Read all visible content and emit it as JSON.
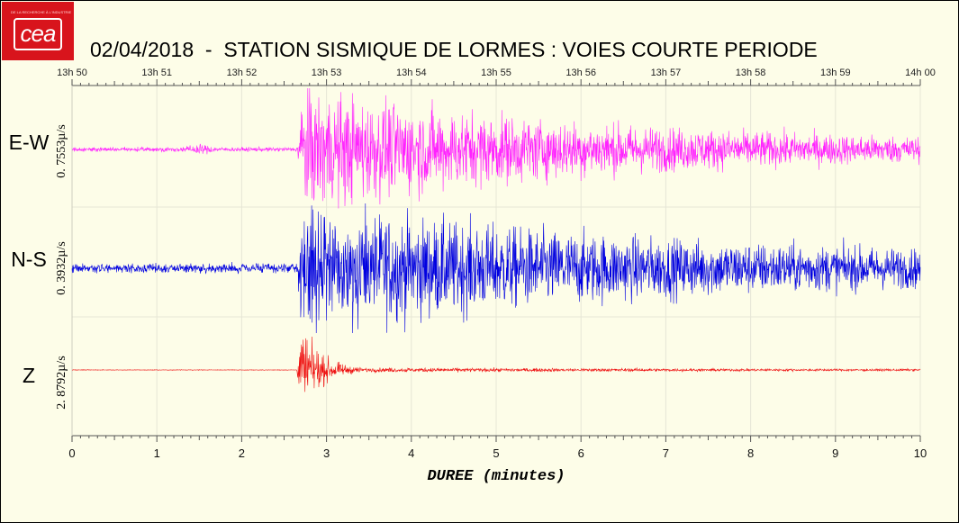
{
  "logo": {
    "text": "cea",
    "small_text": "DE LA RECHERCHE À L'INDUSTRIE"
  },
  "title": "02/04/2018  -  STATION SISMIQUE DE LORMES : VOIES COURTE PERIODE",
  "chart_data": {
    "type": "line",
    "xlabel": "DUREE (minutes)",
    "xlim": [
      0,
      10
    ],
    "x_ticks": [
      "0",
      "1",
      "2",
      "3",
      "4",
      "5",
      "6",
      "7",
      "8",
      "9",
      "10"
    ],
    "top_ticks": [
      "13h 50",
      "13h 51",
      "13h 52",
      "13h 53",
      "13h 54",
      "13h 55",
      "13h 56",
      "13h 57",
      "13h 58",
      "13h 59",
      "14h 00"
    ],
    "event_onset_minutes": 2.65,
    "series": [
      {
        "name": "E-W",
        "scale_label": "0. 7553µ/s",
        "color": "#ff22ff",
        "noise_amplitude": 0.035,
        "peak_amplitude": 1.0,
        "coda_decay_minutes": 3.6,
        "late_floor": 0.09
      },
      {
        "name": "N-S",
        "scale_label": "0. 3932µ/s",
        "color": "#0000e0",
        "noise_amplitude": 0.07,
        "peak_amplitude": 1.0,
        "coda_decay_minutes": 4.5,
        "late_floor": 0.13
      },
      {
        "name": "Z",
        "scale_label": "2. 8792µ/s",
        "color": "#ee1111",
        "noise_amplitude": 0.006,
        "peak_amplitude": 1.0,
        "coda_decay_minutes": 0.25,
        "late_floor": 0.05
      }
    ]
  }
}
